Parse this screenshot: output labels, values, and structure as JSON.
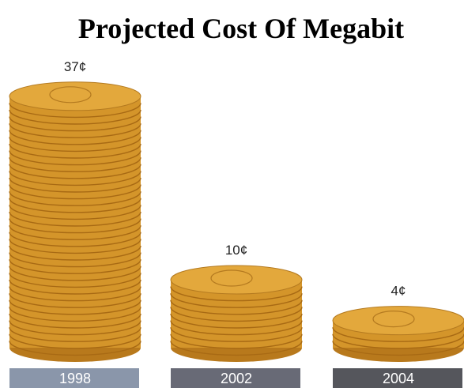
{
  "chart_data": {
    "type": "pictograph",
    "title": "Projected Cost Of Megabit",
    "categories": [
      "1998",
      "2002",
      "2004"
    ],
    "values": [
      37,
      10,
      4
    ],
    "value_labels": [
      "37¢",
      "10¢",
      "4¢"
    ],
    "color": "#d4952a",
    "category_colors": [
      "#8a96aa",
      "#686a76",
      "#55565c"
    ]
  }
}
